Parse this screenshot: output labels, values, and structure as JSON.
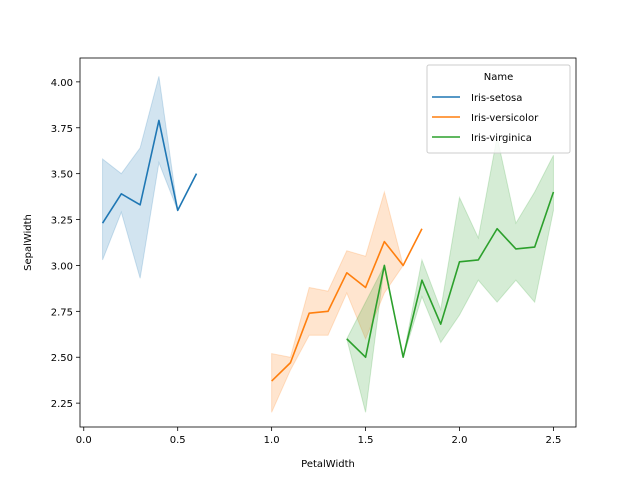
{
  "chart_data": {
    "type": "line",
    "title": "",
    "xlabel": "PetalWidth",
    "ylabel": "SepalWidth",
    "xlim": [
      -0.02,
      2.62
    ],
    "ylim": [
      2.12,
      4.13
    ],
    "xticks": [
      0.0,
      0.5,
      1.0,
      1.5,
      2.0,
      2.5
    ],
    "xtick_labels": [
      "0.0",
      "0.5",
      "1.0",
      "1.5",
      "2.0",
      "2.5"
    ],
    "yticks": [
      2.25,
      2.5,
      2.75,
      3.0,
      3.25,
      3.5,
      3.75,
      4.0
    ],
    "ytick_labels": [
      "2.25",
      "2.50",
      "2.75",
      "3.00",
      "3.25",
      "3.50",
      "3.75",
      "4.00"
    ],
    "grid": false,
    "legend": {
      "title": "Name",
      "placement": "top-right"
    },
    "series": [
      {
        "name": "Iris-setosa",
        "color": "#1f77b4",
        "x": [
          0.1,
          0.2,
          0.3,
          0.4,
          0.5,
          0.6
        ],
        "y": [
          3.23,
          3.39,
          3.33,
          3.79,
          3.3,
          3.5
        ],
        "ci_low": [
          3.03,
          3.29,
          2.93,
          3.56,
          3.3,
          3.5
        ],
        "ci_high": [
          3.58,
          3.5,
          3.64,
          4.03,
          3.3,
          3.5
        ]
      },
      {
        "name": "Iris-versicolor",
        "color": "#ff7f0e",
        "x": [
          1.0,
          1.1,
          1.2,
          1.3,
          1.4,
          1.5,
          1.6,
          1.7,
          1.8
        ],
        "y": [
          2.37,
          2.47,
          2.74,
          2.75,
          2.96,
          2.88,
          3.13,
          3.0,
          3.2
        ],
        "ci_low": [
          2.2,
          2.43,
          2.62,
          2.62,
          2.85,
          2.6,
          2.85,
          3.0,
          3.2
        ],
        "ci_high": [
          2.52,
          2.5,
          2.88,
          2.86,
          3.08,
          3.05,
          3.4,
          3.0,
          3.2
        ]
      },
      {
        "name": "Iris-virginica",
        "color": "#2ca02c",
        "x": [
          1.4,
          1.5,
          1.6,
          1.7,
          1.8,
          1.9,
          2.0,
          2.1,
          2.2,
          2.3,
          2.4,
          2.5
        ],
        "y": [
          2.6,
          2.5,
          3.0,
          2.5,
          2.92,
          2.68,
          3.02,
          3.03,
          3.2,
          3.09,
          3.1,
          3.4
        ],
        "ci_low": [
          2.6,
          2.2,
          3.0,
          2.5,
          2.83,
          2.58,
          2.73,
          2.92,
          2.8,
          2.92,
          2.8,
          3.3
        ],
        "ci_high": [
          2.6,
          2.8,
          3.0,
          2.5,
          3.03,
          2.76,
          3.37,
          3.15,
          3.7,
          3.23,
          3.4,
          3.6
        ]
      }
    ]
  }
}
